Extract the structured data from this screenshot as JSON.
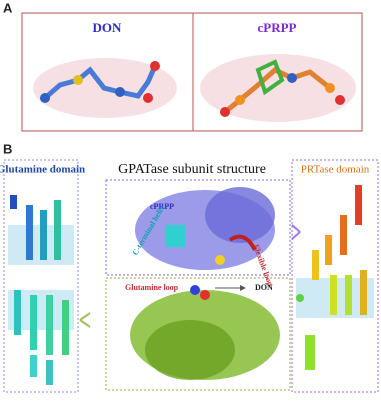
{
  "panel_a": {
    "label": "A",
    "molecules": [
      "DON",
      "cPRPP"
    ]
  },
  "panel_b": {
    "label": "B",
    "title": "GPATase subunit structure",
    "domains": [
      "Glutamine domain",
      "PRTase domain"
    ],
    "annotations": [
      "cPRPP",
      "C-terminal helix",
      "Flexible loop",
      "Glutamine loop",
      "DON"
    ]
  }
}
